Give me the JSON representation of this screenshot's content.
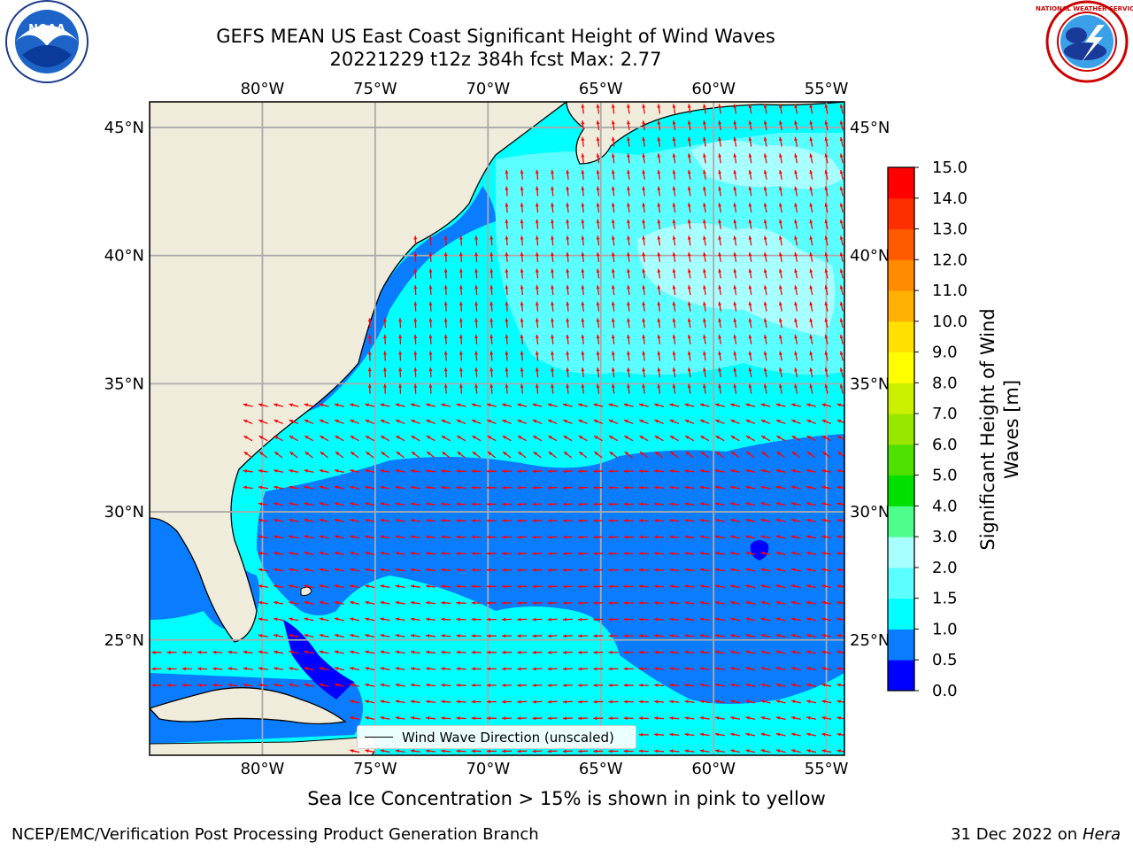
{
  "title": {
    "line1": "GEFS MEAN US East Coast Significant Height of Wind Waves",
    "line2": "20221229 t12z 384h fcst   Max: 2.77"
  },
  "logos": {
    "left": "noaa-logo",
    "right": "national-weather-service-logo",
    "left_text": "NOAA",
    "right_text": "NATIONAL WEATHER SERVICE"
  },
  "map": {
    "lon_range": [
      -85,
      -54.2
    ],
    "lat_range": [
      20.5,
      46
    ],
    "lon_ticks": [
      "80°W",
      "75°W",
      "70°W",
      "65°W",
      "60°W",
      "55°W"
    ],
    "lat_ticks": [
      "45°N",
      "40°N",
      "35°N",
      "30°N",
      "25°N"
    ],
    "gridlines": true,
    "land_color": "#efecdc",
    "arrow_color": "#ff0000"
  },
  "legend": {
    "wind_wave_direction": "Wind Wave Direction (unscaled)"
  },
  "colorbar": {
    "label_line1": "Significant Height of Wind",
    "label_line2": "Waves [m]",
    "ticks": [
      "0.0",
      "0.5",
      "1.0",
      "1.5",
      "2.0",
      "3.0",
      "4.0",
      "5.0",
      "6.0",
      "7.0",
      "8.0",
      "9.0",
      "10.0",
      "11.0",
      "12.0",
      "13.0",
      "14.0",
      "15.0"
    ],
    "colors": [
      "#0000ff",
      "#0a7cff",
      "#00ffff",
      "#5cffff",
      "#a8ffff",
      "#4dff8a",
      "#00e000",
      "#4de000",
      "#99e600",
      "#ccf000",
      "#ffff00",
      "#ffe000",
      "#ffb000",
      "#ff8c00",
      "#ff5a00",
      "#ff2e00",
      "#ff0000"
    ]
  },
  "note": "Sea Ice Concentration > 15% is shown in pink to yellow",
  "footer": {
    "left": "NCEP/EMC/Verification Post Processing Product Generation Branch",
    "right_date": "31 Dec 2022 on",
    "right_host": "Hera"
  }
}
